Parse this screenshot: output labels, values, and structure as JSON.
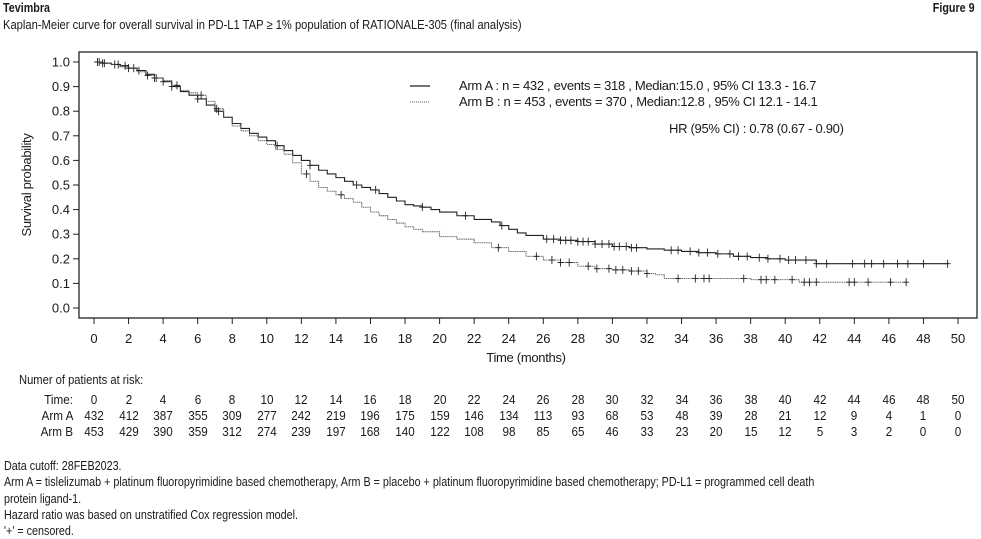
{
  "header": {
    "product": "Tevimbra",
    "figure_label": "Figure 9",
    "subtitle": "Kaplan-Meier curve for overall survival in PD-L1 TAP ≥ 1% population of RATIONALE-305 (final analysis)"
  },
  "chart_data": {
    "type": "line",
    "title": "Kaplan-Meier curve for overall survival in PD-L1 TAP ≥ 1% population of RATIONALE-305 (final analysis)",
    "xlabel": "Time (months)",
    "ylabel": "Survival probability",
    "xlim": [
      0,
      50
    ],
    "ylim": [
      0,
      1.0
    ],
    "x_ticks": [
      "0",
      "2",
      "4",
      "6",
      "8",
      "10",
      "12",
      "14",
      "16",
      "18",
      "20",
      "22",
      "24",
      "26",
      "28",
      "30",
      "32",
      "34",
      "36",
      "38",
      "40",
      "42",
      "44",
      "46",
      "48",
      "50"
    ],
    "y_ticks": [
      "0.0",
      "0.1",
      "0.2",
      "0.3",
      "0.4",
      "0.5",
      "0.6",
      "0.7",
      "0.8",
      "0.9",
      "1.0"
    ],
    "grid": false,
    "legend_position": "top-right",
    "legend": [
      {
        "style": "solid",
        "text": "Arm A : n = 432 , events = 318 , Median:15.0 , 95% CI 13.3 - 16.7"
      },
      {
        "style": "dotted",
        "text": "Arm B : n = 453 , events = 370 , Median:12.8 , 95% CI 12.1 - 14.1"
      }
    ],
    "annotation": "HR (95% CI) : 0.78 (0.67 - 0.90)",
    "series": [
      {
        "name": "Arm A",
        "style": "solid",
        "color": "#222222",
        "x": [
          0,
          0.5,
          1,
          1.5,
          2,
          2.5,
          3,
          3.5,
          4,
          4.5,
          5,
          5.5,
          6,
          6.5,
          7,
          7.5,
          8,
          8.5,
          9,
          9.5,
          10,
          10.5,
          11,
          11.5,
          12,
          12.5,
          13,
          13.5,
          14,
          14.5,
          15,
          15.5,
          16,
          16.5,
          17,
          17.5,
          18,
          18.5,
          19,
          19.5,
          20,
          21,
          22,
          23,
          23.5,
          24,
          24.5,
          25,
          26,
          27,
          28,
          29,
          30,
          31,
          32,
          33,
          34,
          35,
          36,
          37,
          38,
          39,
          40,
          41,
          41.8,
          42,
          44,
          46,
          48,
          49.4
        ],
        "y": [
          1.0,
          0.995,
          0.99,
          0.985,
          0.975,
          0.965,
          0.95,
          0.935,
          0.92,
          0.9,
          0.88,
          0.865,
          0.85,
          0.825,
          0.8,
          0.775,
          0.75,
          0.73,
          0.71,
          0.695,
          0.68,
          0.66,
          0.64,
          0.62,
          0.6,
          0.58,
          0.56,
          0.545,
          0.53,
          0.515,
          0.5,
          0.49,
          0.48,
          0.465,
          0.45,
          0.435,
          0.42,
          0.415,
          0.41,
          0.4,
          0.39,
          0.375,
          0.36,
          0.35,
          0.335,
          0.32,
          0.305,
          0.295,
          0.28,
          0.275,
          0.27,
          0.26,
          0.25,
          0.245,
          0.24,
          0.235,
          0.23,
          0.225,
          0.22,
          0.21,
          0.205,
          0.2,
          0.195,
          0.195,
          0.18,
          0.18,
          0.18,
          0.18,
          0.18,
          0.18
        ],
        "censored_x": [
          0.3,
          0.6,
          1.2,
          1.8,
          2.3,
          2.6,
          3.5,
          4.0,
          4.5,
          6.0,
          7.2,
          10.6,
          12.5,
          15.2,
          16.3,
          19.0,
          21.5,
          23.6,
          26.2,
          26.6,
          27.0,
          27.3,
          27.6,
          28.0,
          28.3,
          28.6,
          29.0,
          29.4,
          29.8,
          30.1,
          30.4,
          30.8,
          31.1,
          31.4,
          33.4,
          33.8,
          34.5,
          35.0,
          35.5,
          36.1,
          36.8,
          37.3,
          37.8,
          38.5,
          39.0,
          39.7,
          40.2,
          40.6,
          41.2,
          41.8,
          42.4,
          43.9,
          44.6,
          45.0,
          45.7,
          46.5,
          47.1,
          48.0,
          49.4
        ]
      },
      {
        "name": "Arm B",
        "style": "dotted",
        "color": "#555555",
        "x": [
          0,
          0.5,
          1,
          1.5,
          2,
          2.5,
          3,
          3.5,
          4,
          4.5,
          5,
          5.5,
          6,
          6.5,
          7,
          7.5,
          8,
          8.5,
          9,
          9.5,
          10,
          10.5,
          11,
          11.5,
          12,
          12.5,
          13,
          13.5,
          14,
          14.5,
          15,
          15.5,
          16,
          16.5,
          17,
          17.5,
          18,
          18.5,
          19,
          20,
          21,
          22,
          23,
          24,
          25,
          26,
          27,
          28,
          29,
          30,
          31,
          32,
          32.5,
          33,
          34,
          36,
          38,
          40,
          40.8,
          42,
          44,
          46,
          47
        ],
        "y": [
          1.0,
          0.995,
          0.99,
          0.98,
          0.975,
          0.96,
          0.945,
          0.935,
          0.925,
          0.905,
          0.885,
          0.875,
          0.865,
          0.84,
          0.81,
          0.775,
          0.74,
          0.72,
          0.7,
          0.68,
          0.665,
          0.645,
          0.625,
          0.59,
          0.545,
          0.515,
          0.49,
          0.475,
          0.46,
          0.445,
          0.43,
          0.41,
          0.39,
          0.375,
          0.36,
          0.345,
          0.33,
          0.32,
          0.31,
          0.29,
          0.28,
          0.265,
          0.245,
          0.23,
          0.21,
          0.195,
          0.185,
          0.17,
          0.16,
          0.155,
          0.15,
          0.14,
          0.135,
          0.12,
          0.12,
          0.12,
          0.115,
          0.115,
          0.105,
          0.105,
          0.105,
          0.105,
          0.105
        ],
        "censored_x": [
          0.2,
          0.5,
          1.4,
          2.0,
          3.1,
          3.6,
          4.8,
          6.2,
          7.1,
          12.3,
          14.3,
          23.4,
          25.6,
          26.5,
          27.0,
          27.5,
          28.6,
          29.1,
          29.8,
          30.2,
          30.6,
          31.1,
          31.5,
          32.0,
          33.8,
          34.8,
          35.3,
          35.6,
          37.6,
          38.6,
          38.9,
          39.4,
          40.4,
          41.1,
          41.4,
          41.8,
          43.7,
          44.0,
          44.8,
          46.1,
          47.0
        ]
      }
    ]
  },
  "risk_table": {
    "title": "Numer of patients at risk:",
    "rows": [
      {
        "label": "Time:",
        "values": [
          "0",
          "2",
          "4",
          "6",
          "8",
          "10",
          "12",
          "14",
          "16",
          "18",
          "20",
          "22",
          "24",
          "26",
          "28",
          "30",
          "32",
          "34",
          "36",
          "38",
          "40",
          "42",
          "44",
          "46",
          "48",
          "50"
        ]
      },
      {
        "label": "Arm A",
        "values": [
          "432",
          "412",
          "387",
          "355",
          "309",
          "277",
          "242",
          "219",
          "196",
          "175",
          "159",
          "146",
          "134",
          "113",
          "93",
          "68",
          "53",
          "48",
          "39",
          "28",
          "21",
          "12",
          "9",
          "4",
          "1",
          "0"
        ]
      },
      {
        "label": "Arm B",
        "values": [
          "453",
          "429",
          "390",
          "359",
          "312",
          "274",
          "239",
          "197",
          "168",
          "140",
          "122",
          "108",
          "98",
          "85",
          "65",
          "46",
          "33",
          "23",
          "20",
          "15",
          "12",
          "5",
          "3",
          "2",
          "0",
          "0"
        ]
      }
    ]
  },
  "footnotes": [
    "Data cutoff: 28FEB2023.",
    "Arm A = tislelizumab + platinum fluoropyrimidine based chemotherapy, Arm B = placebo + platinum fluoropyrimidine based chemotherapy; PD-L1 = programmed cell death",
    "protein ligand-1.",
    "Hazard ratio was based on unstratified Cox regression model.",
    "'+' = censored."
  ]
}
